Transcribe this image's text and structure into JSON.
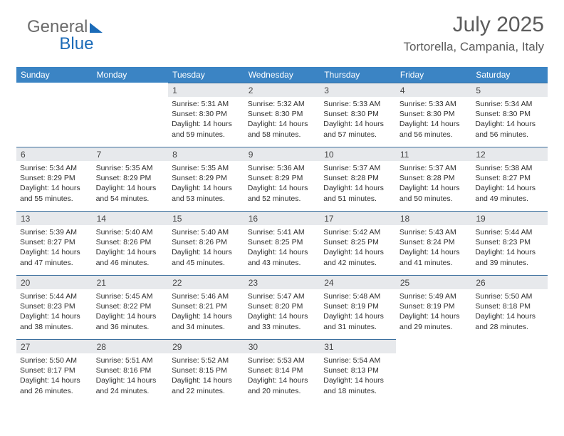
{
  "logo": {
    "word1": "General",
    "word2": "Blue"
  },
  "title": "July 2025",
  "location": "Tortorella, Campania, Italy",
  "weekdays": [
    "Sunday",
    "Monday",
    "Tuesday",
    "Wednesday",
    "Thursday",
    "Friday",
    "Saturday"
  ],
  "colors": {
    "header_bg": "#3b84c4",
    "header_text": "#ffffff",
    "daynum_bg": "#e7e9ec",
    "row_border": "#3b6f9e",
    "title_color": "#5c5c5c",
    "logo_gray": "#6b6b6b",
    "logo_blue": "#1b6bb8"
  },
  "weeks": [
    [
      {
        "n": "",
        "sr": "",
        "ss": "",
        "dl": ""
      },
      {
        "n": "",
        "sr": "",
        "ss": "",
        "dl": ""
      },
      {
        "n": "1",
        "sr": "Sunrise: 5:31 AM",
        "ss": "Sunset: 8:30 PM",
        "dl": "Daylight: 14 hours and 59 minutes."
      },
      {
        "n": "2",
        "sr": "Sunrise: 5:32 AM",
        "ss": "Sunset: 8:30 PM",
        "dl": "Daylight: 14 hours and 58 minutes."
      },
      {
        "n": "3",
        "sr": "Sunrise: 5:33 AM",
        "ss": "Sunset: 8:30 PM",
        "dl": "Daylight: 14 hours and 57 minutes."
      },
      {
        "n": "4",
        "sr": "Sunrise: 5:33 AM",
        "ss": "Sunset: 8:30 PM",
        "dl": "Daylight: 14 hours and 56 minutes."
      },
      {
        "n": "5",
        "sr": "Sunrise: 5:34 AM",
        "ss": "Sunset: 8:30 PM",
        "dl": "Daylight: 14 hours and 56 minutes."
      }
    ],
    [
      {
        "n": "6",
        "sr": "Sunrise: 5:34 AM",
        "ss": "Sunset: 8:29 PM",
        "dl": "Daylight: 14 hours and 55 minutes."
      },
      {
        "n": "7",
        "sr": "Sunrise: 5:35 AM",
        "ss": "Sunset: 8:29 PM",
        "dl": "Daylight: 14 hours and 54 minutes."
      },
      {
        "n": "8",
        "sr": "Sunrise: 5:35 AM",
        "ss": "Sunset: 8:29 PM",
        "dl": "Daylight: 14 hours and 53 minutes."
      },
      {
        "n": "9",
        "sr": "Sunrise: 5:36 AM",
        "ss": "Sunset: 8:29 PM",
        "dl": "Daylight: 14 hours and 52 minutes."
      },
      {
        "n": "10",
        "sr": "Sunrise: 5:37 AM",
        "ss": "Sunset: 8:28 PM",
        "dl": "Daylight: 14 hours and 51 minutes."
      },
      {
        "n": "11",
        "sr": "Sunrise: 5:37 AM",
        "ss": "Sunset: 8:28 PM",
        "dl": "Daylight: 14 hours and 50 minutes."
      },
      {
        "n": "12",
        "sr": "Sunrise: 5:38 AM",
        "ss": "Sunset: 8:27 PM",
        "dl": "Daylight: 14 hours and 49 minutes."
      }
    ],
    [
      {
        "n": "13",
        "sr": "Sunrise: 5:39 AM",
        "ss": "Sunset: 8:27 PM",
        "dl": "Daylight: 14 hours and 47 minutes."
      },
      {
        "n": "14",
        "sr": "Sunrise: 5:40 AM",
        "ss": "Sunset: 8:26 PM",
        "dl": "Daylight: 14 hours and 46 minutes."
      },
      {
        "n": "15",
        "sr": "Sunrise: 5:40 AM",
        "ss": "Sunset: 8:26 PM",
        "dl": "Daylight: 14 hours and 45 minutes."
      },
      {
        "n": "16",
        "sr": "Sunrise: 5:41 AM",
        "ss": "Sunset: 8:25 PM",
        "dl": "Daylight: 14 hours and 43 minutes."
      },
      {
        "n": "17",
        "sr": "Sunrise: 5:42 AM",
        "ss": "Sunset: 8:25 PM",
        "dl": "Daylight: 14 hours and 42 minutes."
      },
      {
        "n": "18",
        "sr": "Sunrise: 5:43 AM",
        "ss": "Sunset: 8:24 PM",
        "dl": "Daylight: 14 hours and 41 minutes."
      },
      {
        "n": "19",
        "sr": "Sunrise: 5:44 AM",
        "ss": "Sunset: 8:23 PM",
        "dl": "Daylight: 14 hours and 39 minutes."
      }
    ],
    [
      {
        "n": "20",
        "sr": "Sunrise: 5:44 AM",
        "ss": "Sunset: 8:23 PM",
        "dl": "Daylight: 14 hours and 38 minutes."
      },
      {
        "n": "21",
        "sr": "Sunrise: 5:45 AM",
        "ss": "Sunset: 8:22 PM",
        "dl": "Daylight: 14 hours and 36 minutes."
      },
      {
        "n": "22",
        "sr": "Sunrise: 5:46 AM",
        "ss": "Sunset: 8:21 PM",
        "dl": "Daylight: 14 hours and 34 minutes."
      },
      {
        "n": "23",
        "sr": "Sunrise: 5:47 AM",
        "ss": "Sunset: 8:20 PM",
        "dl": "Daylight: 14 hours and 33 minutes."
      },
      {
        "n": "24",
        "sr": "Sunrise: 5:48 AM",
        "ss": "Sunset: 8:19 PM",
        "dl": "Daylight: 14 hours and 31 minutes."
      },
      {
        "n": "25",
        "sr": "Sunrise: 5:49 AM",
        "ss": "Sunset: 8:19 PM",
        "dl": "Daylight: 14 hours and 29 minutes."
      },
      {
        "n": "26",
        "sr": "Sunrise: 5:50 AM",
        "ss": "Sunset: 8:18 PM",
        "dl": "Daylight: 14 hours and 28 minutes."
      }
    ],
    [
      {
        "n": "27",
        "sr": "Sunrise: 5:50 AM",
        "ss": "Sunset: 8:17 PM",
        "dl": "Daylight: 14 hours and 26 minutes."
      },
      {
        "n": "28",
        "sr": "Sunrise: 5:51 AM",
        "ss": "Sunset: 8:16 PM",
        "dl": "Daylight: 14 hours and 24 minutes."
      },
      {
        "n": "29",
        "sr": "Sunrise: 5:52 AM",
        "ss": "Sunset: 8:15 PM",
        "dl": "Daylight: 14 hours and 22 minutes."
      },
      {
        "n": "30",
        "sr": "Sunrise: 5:53 AM",
        "ss": "Sunset: 8:14 PM",
        "dl": "Daylight: 14 hours and 20 minutes."
      },
      {
        "n": "31",
        "sr": "Sunrise: 5:54 AM",
        "ss": "Sunset: 8:13 PM",
        "dl": "Daylight: 14 hours and 18 minutes."
      },
      {
        "n": "",
        "sr": "",
        "ss": "",
        "dl": ""
      },
      {
        "n": "",
        "sr": "",
        "ss": "",
        "dl": ""
      }
    ]
  ]
}
